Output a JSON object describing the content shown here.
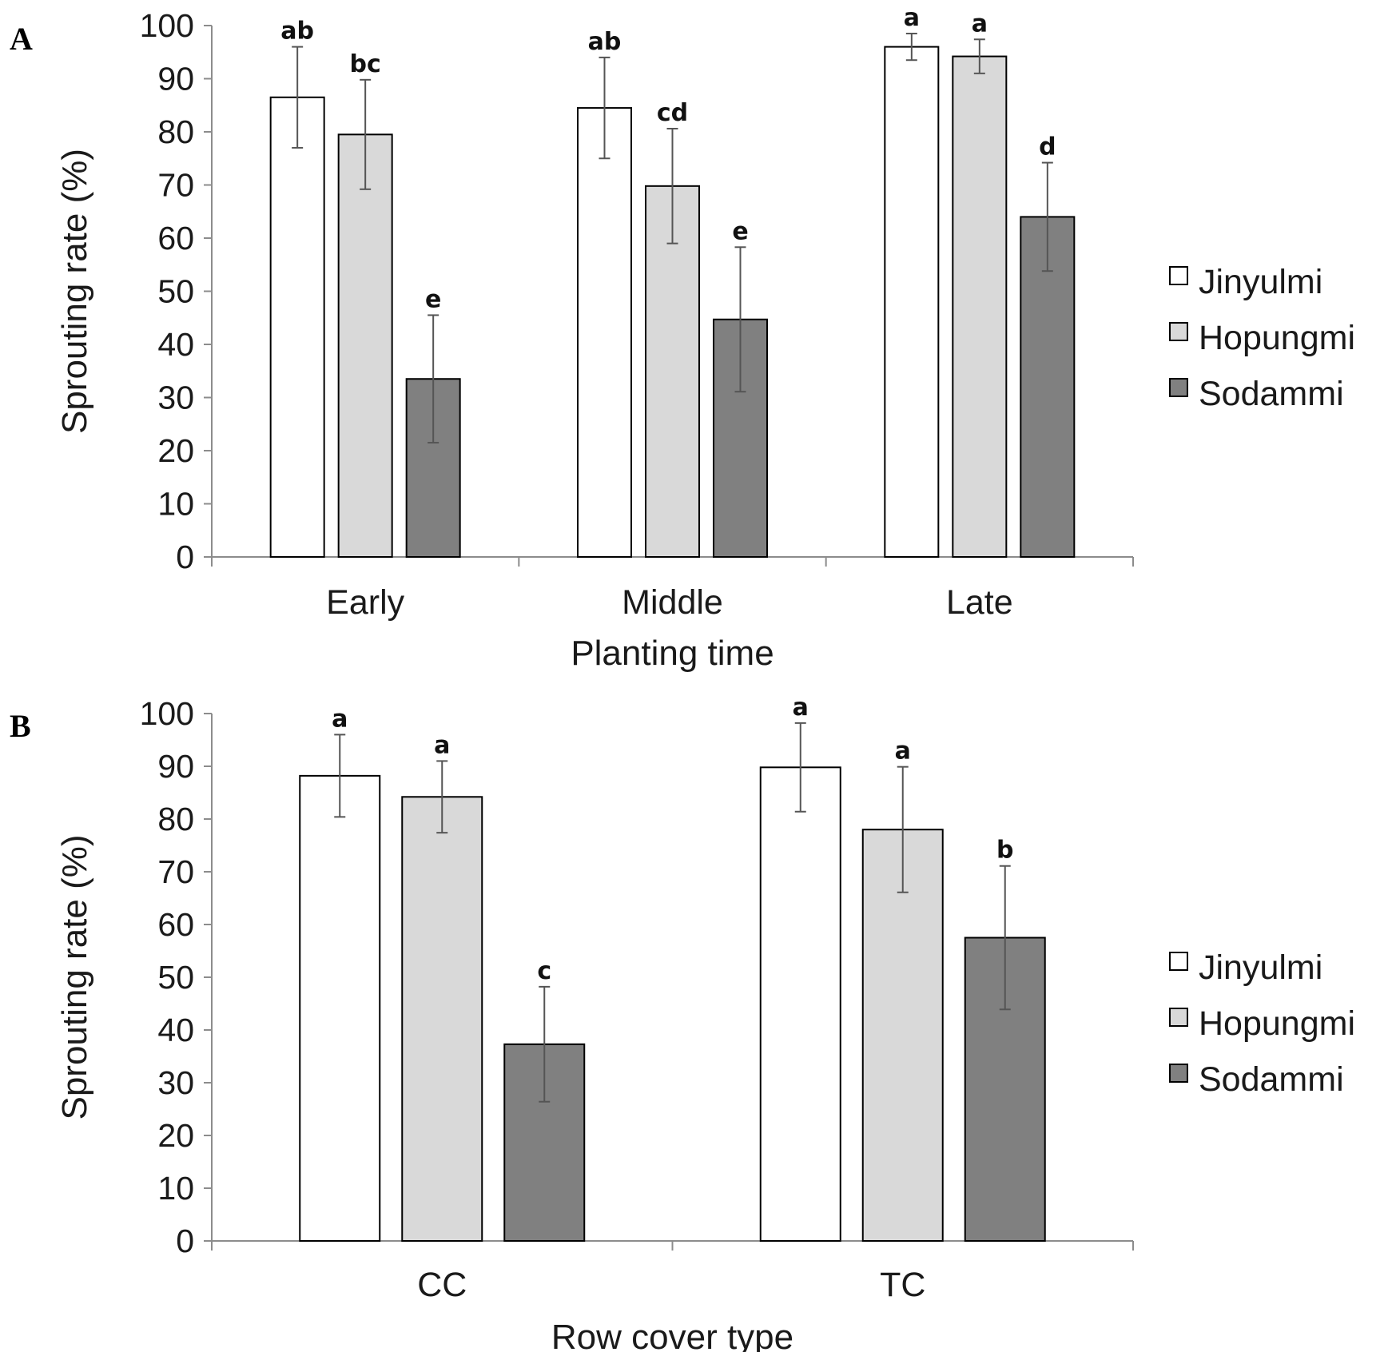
{
  "chart_data": [
    {
      "type": "bar",
      "panel": "A",
      "xlabel": "Planting time",
      "ylabel": "Sprouting rate (%)",
      "ylim": [
        0,
        100
      ],
      "yticks": [
        0,
        10,
        20,
        30,
        40,
        50,
        60,
        70,
        80,
        90,
        100
      ],
      "categories": [
        "Early",
        "Middle",
        "Late"
      ],
      "legend_position": "right",
      "grid": false,
      "series": [
        {
          "name": "Jinyulmi",
          "color": "#ffffff",
          "values": [
            86.5,
            84.5,
            96.0
          ],
          "errors": [
            9.5,
            9.5,
            2.5
          ],
          "letters": [
            "ab",
            "ab",
            "a"
          ]
        },
        {
          "name": "Hopungmi",
          "color": "#d9d9d9",
          "values": [
            79.5,
            69.8,
            94.2
          ],
          "errors": [
            10.3,
            10.8,
            3.2
          ],
          "letters": [
            "bc",
            "cd",
            "a"
          ]
        },
        {
          "name": "Sodammi",
          "color": "#808080",
          "values": [
            33.5,
            44.7,
            64.0
          ],
          "errors": [
            12.0,
            13.6,
            10.2
          ],
          "letters": [
            "e",
            "e",
            "d"
          ]
        }
      ]
    },
    {
      "type": "bar",
      "panel": "B",
      "xlabel": "Row cover type",
      "ylabel": "Sprouting rate (%)",
      "ylim": [
        0,
        100
      ],
      "yticks": [
        0,
        10,
        20,
        30,
        40,
        50,
        60,
        70,
        80,
        90,
        100
      ],
      "categories": [
        "CC",
        "TC"
      ],
      "legend_position": "right",
      "grid": false,
      "series": [
        {
          "name": "Jinyulmi",
          "color": "#ffffff",
          "values": [
            88.2,
            89.8
          ],
          "errors": [
            7.8,
            8.4
          ],
          "letters": [
            "a",
            "a"
          ]
        },
        {
          "name": "Hopungmi",
          "color": "#d9d9d9",
          "values": [
            84.2,
            78.0
          ],
          "errors": [
            6.8,
            11.9
          ],
          "letters": [
            "a",
            "a"
          ]
        },
        {
          "name": "Sodammi",
          "color": "#808080",
          "values": [
            37.3,
            57.5
          ],
          "errors": [
            10.9,
            13.6
          ],
          "letters": [
            "c",
            "b"
          ]
        }
      ]
    }
  ]
}
